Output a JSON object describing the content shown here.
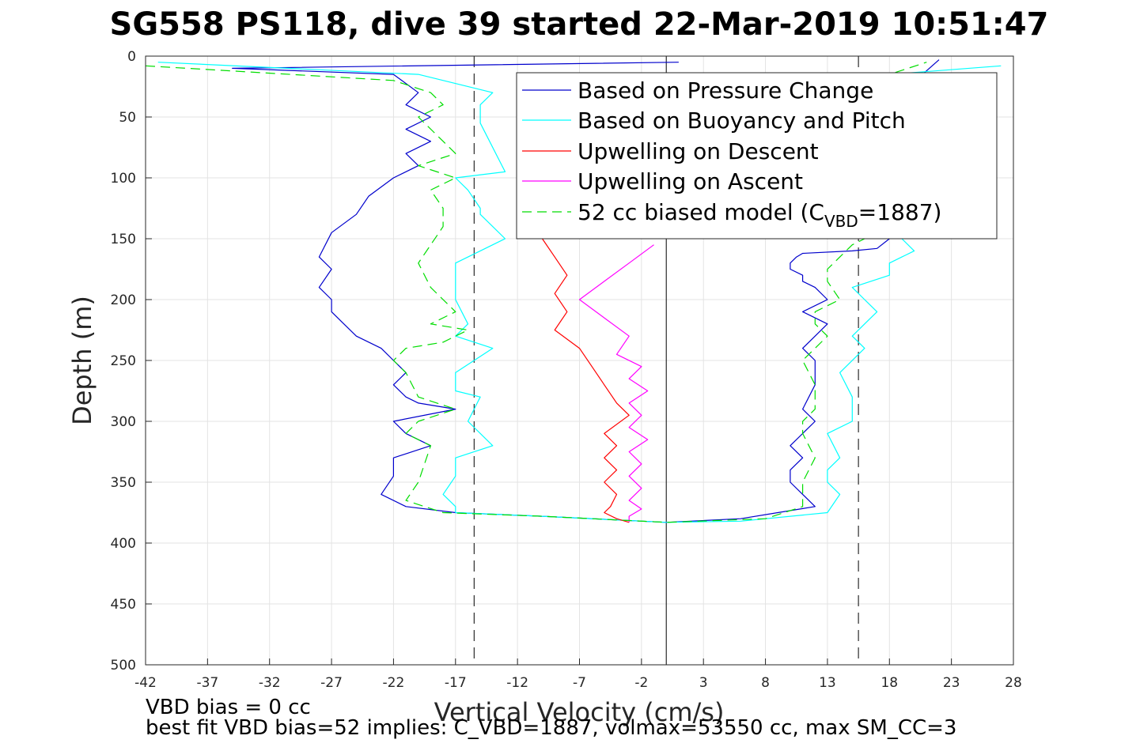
{
  "title": "SG558 PS118, dive 39 started 22-Mar-2019 10:51:47",
  "footer": {
    "line1": "VBD bias = 0 cc",
    "line2": "best fit VBD bias=52 implies: C_VBD=1887, volmax=53550 cc, max SM_CC=3"
  },
  "chart_data": {
    "type": "line",
    "title": "SG558 PS118, dive 39 started 22-Mar-2019 10:51:47",
    "xlabel": "Vertical Velocity (cm/s)",
    "ylabel": "Depth (m)",
    "xlim": [
      -42,
      28
    ],
    "ylim": [
      0,
      500
    ],
    "y_reversed": true,
    "grid": true,
    "legend_position": "top-right",
    "xticks": [
      "-42",
      "-37",
      "-32",
      "-27",
      "-22",
      "-17",
      "-12",
      "-7",
      "-2",
      "3",
      "8",
      "13",
      "18",
      "23",
      "28"
    ],
    "yticks": [
      "0",
      "50",
      "100",
      "150",
      "200",
      "250",
      "300",
      "350",
      "400",
      "450",
      "500"
    ],
    "reference_lines": {
      "solid_x": 0,
      "dashed_x": [
        -15.5,
        15.5
      ]
    },
    "legend": [
      {
        "text": "Based on Pressure Change"
      },
      {
        "text": "Based on Buoyancy and Pitch"
      },
      {
        "text": "Upwelling on Descent"
      },
      {
        "text": "Upwelling on Ascent"
      },
      {
        "text_pre": "52 cc biased model (C",
        "sub": "VBD",
        "text_post": "=1887)"
      }
    ],
    "series": [
      {
        "name": "Based on Pressure Change",
        "color": "#0000cc",
        "dash": "solid",
        "x": [
          1,
          -35,
          -22,
          -20,
          -21,
          -19,
          -21,
          -19,
          -21,
          -20,
          -22,
          -24,
          -25,
          -27,
          -28,
          -27,
          -28,
          -27,
          -27,
          -26,
          -25,
          -23,
          -22,
          -21,
          -22,
          -21,
          -20,
          -17,
          -22,
          -21,
          -19,
          -22,
          -22,
          -23,
          -21,
          -17,
          -10,
          0,
          6,
          9,
          12,
          11,
          10,
          10,
          11,
          10,
          12,
          11,
          12,
          12,
          11,
          12,
          13,
          11,
          13,
          12,
          11,
          11,
          10,
          10,
          10.5,
          11,
          15,
          17,
          18,
          19,
          22
        ],
        "y": [
          5,
          10,
          15,
          30,
          40,
          50,
          60,
          70,
          80,
          90,
          100,
          115,
          130,
          145,
          165,
          175,
          190,
          200,
          210,
          220,
          230,
          240,
          250,
          260,
          270,
          280,
          285,
          290,
          300,
          310,
          320,
          330,
          345,
          360,
          370,
          375,
          378,
          383,
          380,
          375,
          370,
          360,
          350,
          340,
          330,
          320,
          300,
          290,
          270,
          250,
          240,
          230,
          220,
          210,
          200,
          190,
          185,
          180,
          175,
          170,
          165,
          162,
          160,
          158,
          150,
          30,
          3
        ]
      },
      {
        "name": "Based on Buoyancy and Pitch",
        "color": "#00ffff",
        "dash": "solid",
        "x": [
          -41,
          -20,
          -14,
          -15,
          -15,
          -13,
          -17,
          -16,
          -15,
          -15,
          -13,
          -17,
          -17,
          -17,
          -16,
          -17,
          -14,
          -17,
          -17,
          -15,
          -16,
          -14,
          -17,
          -17,
          -18,
          -17,
          -17,
          -10,
          0,
          6,
          13,
          14,
          13,
          13,
          14,
          13,
          15,
          15,
          14,
          16,
          15,
          16,
          17,
          16,
          15,
          18,
          18,
          19,
          20,
          19,
          19,
          20,
          19,
          19,
          18,
          27
        ],
        "y": [
          5,
          15,
          30,
          40,
          55,
          95,
          100,
          110,
          125,
          130,
          150,
          170,
          190,
          200,
          220,
          230,
          240,
          260,
          275,
          280,
          300,
          320,
          330,
          345,
          360,
          370,
          375,
          378,
          383,
          382,
          375,
          360,
          350,
          340,
          330,
          310,
          300,
          280,
          260,
          240,
          230,
          220,
          210,
          200,
          190,
          180,
          170,
          165,
          160,
          150,
          100,
          60,
          40,
          25,
          15,
          8
        ]
      },
      {
        "name": "Upwelling on Descent",
        "color": "#ff0000",
        "dash": "solid",
        "x": [
          -10,
          -9,
          -8,
          -9,
          -8,
          -9,
          -7,
          -6,
          -5,
          -4,
          -3,
          -5,
          -4,
          -5,
          -4,
          -5,
          -4,
          -4.5,
          -5,
          -4,
          -3
        ],
        "y": [
          150,
          165,
          180,
          195,
          210,
          225,
          240,
          255,
          270,
          285,
          295,
          310,
          320,
          330,
          340,
          350,
          360,
          370,
          375,
          380,
          383
        ]
      },
      {
        "name": "Upwelling on Ascent",
        "color": "#ff00ff",
        "dash": "solid",
        "x": [
          -1,
          -3,
          -5,
          -7,
          -5,
          -3,
          -4,
          -2,
          -3,
          -1.5,
          -3,
          -2,
          -3,
          -1.5,
          -3,
          -2,
          -3,
          -2,
          -3,
          -2,
          -3,
          -3
        ],
        "y": [
          155,
          170,
          185,
          200,
          215,
          230,
          245,
          255,
          265,
          275,
          285,
          295,
          305,
          315,
          325,
          335,
          345,
          355,
          365,
          372,
          378,
          383
        ]
      },
      {
        "name": "52 cc biased model (C_VBD=1887)",
        "color": "#00dd00",
        "dash": "dashed",
        "x": [
          -42,
          -22,
          -19,
          -18,
          -20,
          -17,
          -20,
          -17,
          -19,
          -18,
          -18,
          -20,
          -19,
          -17,
          -19,
          -16,
          -18,
          -21,
          -22,
          -21,
          -20,
          -17,
          -20,
          -21,
          -19,
          -20,
          -21,
          -18,
          -10,
          0,
          8,
          11,
          11,
          12,
          11,
          11,
          12,
          12,
          11,
          13,
          12,
          12,
          14,
          13,
          13,
          14,
          15,
          16,
          17,
          15,
          16,
          18,
          21
        ],
        "y": [
          8,
          20,
          30,
          40,
          50,
          80,
          90,
          100,
          110,
          125,
          140,
          170,
          190,
          210,
          220,
          225,
          235,
          240,
          250,
          260,
          280,
          290,
          300,
          310,
          320,
          350,
          365,
          375,
          378,
          383,
          380,
          370,
          350,
          330,
          310,
          300,
          290,
          270,
          250,
          230,
          220,
          210,
          200,
          185,
          175,
          165,
          155,
          150,
          120,
          80,
          40,
          15,
          5
        ]
      }
    ]
  }
}
